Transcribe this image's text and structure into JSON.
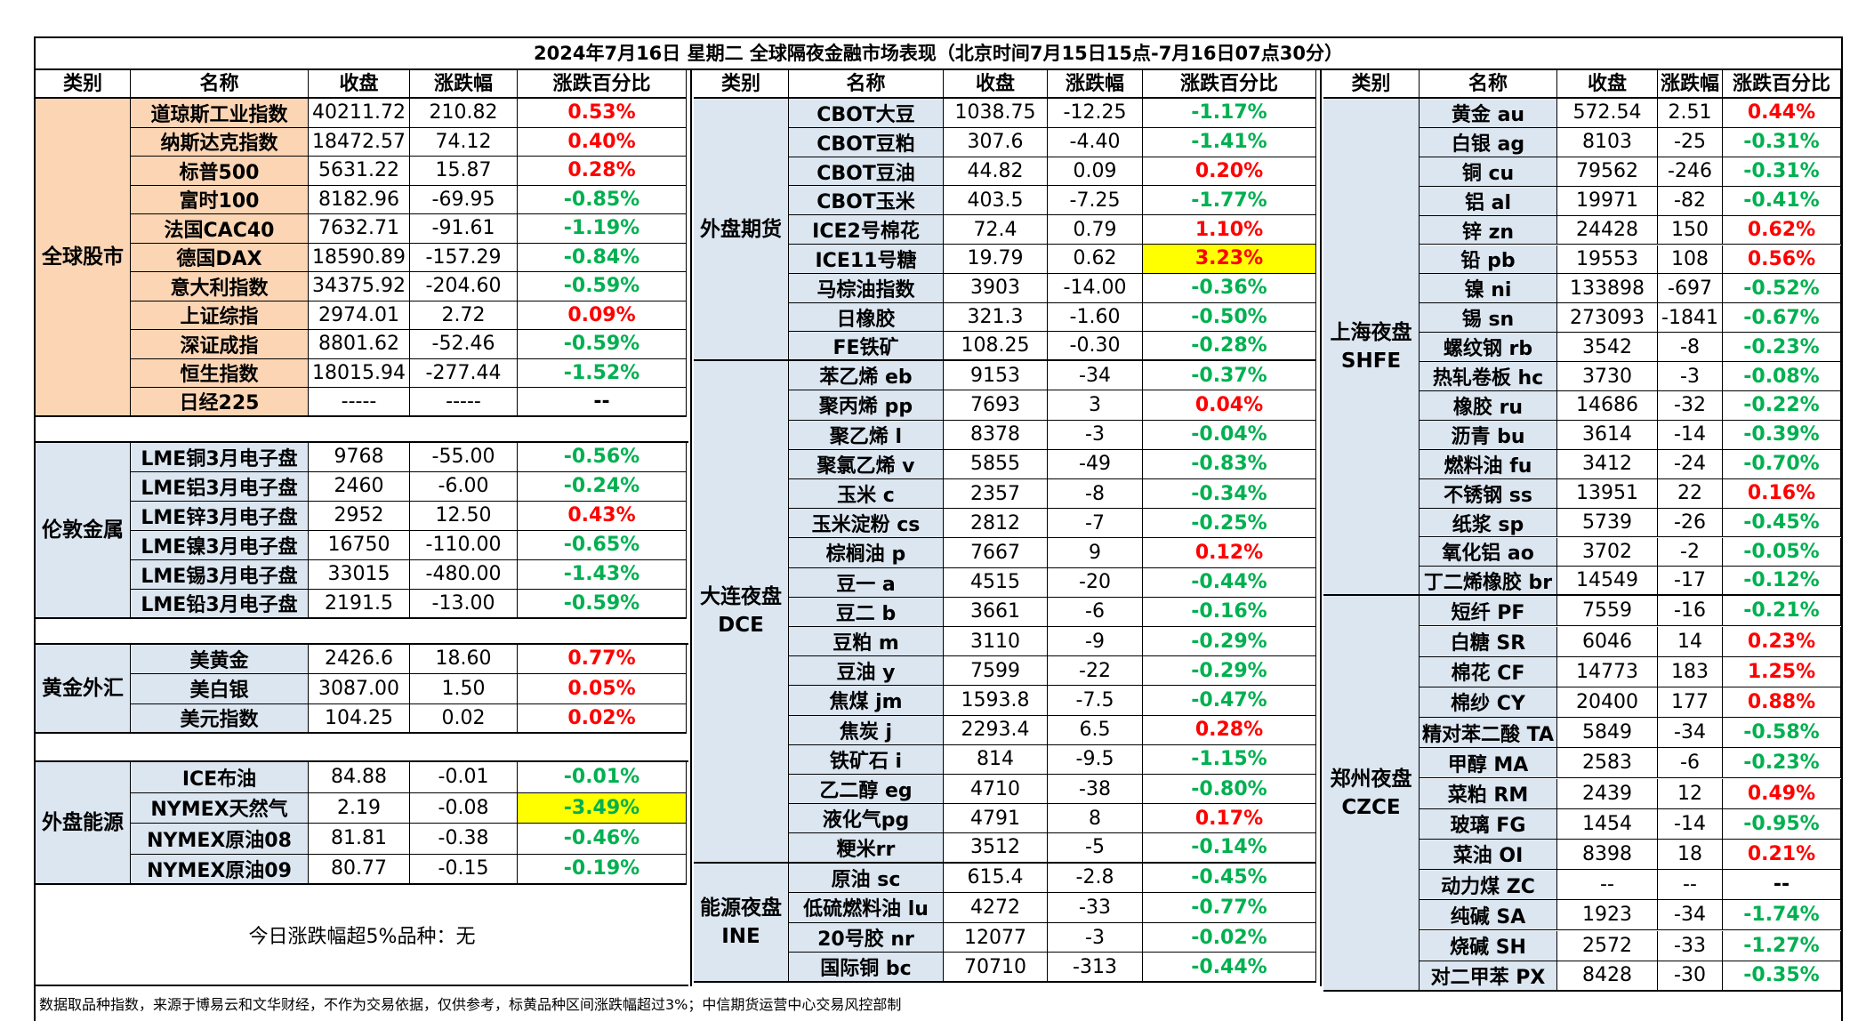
{
  "title": "2024年7月16日 星期二 全球隔夜金融市场表现（北京时间7月15日15点-7月16日07点30分）",
  "headers": [
    "类别",
    "名称",
    "收盘",
    "涨跌幅",
    "涨跌百分比"
  ],
  "colors": {
    "up": "#ff0000",
    "down": "#00b050",
    "highlight": "#ffff00",
    "equity_fill": "#fcd5b4",
    "light_fill": "#dce6f1"
  },
  "panel1": [
    {
      "category": "全球股市",
      "rows": [
        [
          "道琼斯工业指数",
          "40211.72",
          "210.82",
          "0.53%"
        ],
        [
          "纳斯达克指数",
          "18472.57",
          "74.12",
          "0.40%"
        ],
        [
          "标普500",
          "5631.22",
          "15.87",
          "0.28%"
        ],
        [
          "富时100",
          "8182.96",
          "-69.95",
          "-0.85%"
        ],
        [
          "法国CAC40",
          "7632.71",
          "-91.61",
          "-1.19%"
        ],
        [
          "德国DAX",
          "18590.89",
          "-157.29",
          "-0.84%"
        ],
        [
          "意大利指数",
          "34375.92",
          "-204.60",
          "-0.59%"
        ],
        [
          "上证综指",
          "2974.01",
          "2.72",
          "0.09%"
        ],
        [
          "深证成指",
          "8801.62",
          "-52.46",
          "-0.59%"
        ],
        [
          "恒生指数",
          "18015.94",
          "-277.44",
          "-1.52%"
        ],
        [
          "日经225",
          "-----",
          "-----",
          "--"
        ]
      ]
    },
    {
      "category": "伦敦金属",
      "rows": [
        [
          "LME铜3月电子盘",
          "9768",
          "-55.00",
          "-0.56%"
        ],
        [
          "LME铝3月电子盘",
          "2460",
          "-6.00",
          "-0.24%"
        ],
        [
          "LME锌3月电子盘",
          "2952",
          "12.50",
          "0.43%"
        ],
        [
          "LME镍3月电子盘",
          "16750",
          "-110.00",
          "-0.65%"
        ],
        [
          "LME锡3月电子盘",
          "33015",
          "-480.00",
          "-1.43%"
        ],
        [
          "LME铅3月电子盘",
          "2191.5",
          "-13.00",
          "-0.59%"
        ]
      ]
    },
    {
      "category": "黄金外汇",
      "rows": [
        [
          "美黄金",
          "2426.6",
          "18.60",
          "0.77%"
        ],
        [
          "美白银",
          "3087.00",
          "1.50",
          "0.05%"
        ],
        [
          "美元指数",
          "104.25",
          "0.02",
          "0.02%"
        ]
      ]
    },
    {
      "category": "外盘能源",
      "rows": [
        [
          "ICE布油",
          "84.88",
          "-0.01",
          "-0.01%"
        ],
        [
          "NYMEX天然气",
          "2.19",
          "-0.08",
          "-3.49%"
        ],
        [
          "NYMEX原油08",
          "81.81",
          "-0.38",
          "-0.46%"
        ],
        [
          "NYMEX原油09",
          "80.77",
          "-0.15",
          "-0.19%"
        ]
      ]
    }
  ],
  "note": "今日涨跌幅超5%品种：无",
  "panel2": [
    {
      "category": "外盘期货",
      "rows": [
        [
          "CBOT大豆",
          "1038.75",
          "-12.25",
          "-1.17%"
        ],
        [
          "CBOT豆粕",
          "307.6",
          "-4.40",
          "-1.41%"
        ],
        [
          "CBOT豆油",
          "44.82",
          "0.09",
          "0.20%"
        ],
        [
          "CBOT玉米",
          "403.5",
          "-7.25",
          "-1.77%"
        ],
        [
          "ICE2号棉花",
          "72.4",
          "0.79",
          "1.10%"
        ],
        [
          "ICE11号糖",
          "19.79",
          "0.62",
          "3.23%"
        ],
        [
          "马棕油指数",
          "3903",
          "-14.00",
          "-0.36%"
        ],
        [
          "日橡胶",
          "321.3",
          "-1.60",
          "-0.50%"
        ],
        [
          "FE铁矿",
          "108.25",
          "-0.30",
          "-0.28%"
        ]
      ]
    },
    {
      "category": "大连夜盘\nDCE",
      "rows": [
        [
          "苯乙烯 eb",
          "9153",
          "-34",
          "-0.37%"
        ],
        [
          "聚丙烯 pp",
          "7693",
          "3",
          "0.04%"
        ],
        [
          "聚乙烯 l",
          "8378",
          "-3",
          "-0.04%"
        ],
        [
          "聚氯乙烯 v",
          "5855",
          "-49",
          "-0.83%"
        ],
        [
          "玉米 c",
          "2357",
          "-8",
          "-0.34%"
        ],
        [
          "玉米淀粉 cs",
          "2812",
          "-7",
          "-0.25%"
        ],
        [
          "棕榈油 p",
          "7667",
          "9",
          "0.12%"
        ],
        [
          "豆一 a",
          "4515",
          "-20",
          "-0.44%"
        ],
        [
          "豆二 b",
          "3661",
          "-6",
          "-0.16%"
        ],
        [
          "豆粕 m",
          "3110",
          "-9",
          "-0.29%"
        ],
        [
          "豆油 y",
          "7599",
          "-22",
          "-0.29%"
        ],
        [
          "焦煤 jm",
          "1593.8",
          "-7.5",
          "-0.47%"
        ],
        [
          "焦炭 j",
          "2293.4",
          "6.5",
          "0.28%"
        ],
        [
          "铁矿石 i",
          "814",
          "-9.5",
          "-1.15%"
        ],
        [
          "乙二醇 eg",
          "4710",
          "-38",
          "-0.80%"
        ],
        [
          "液化气pg",
          "4791",
          "8",
          "0.17%"
        ],
        [
          "粳米rr",
          "3512",
          "-5",
          "-0.14%"
        ]
      ]
    },
    {
      "category": "能源夜盘\nINE",
      "rows": [
        [
          "原油 sc",
          "615.4",
          "-2.8",
          "-0.45%"
        ],
        [
          "低硫燃料油 lu",
          "4272",
          "-33",
          "-0.77%"
        ],
        [
          "20号胶 nr",
          "12077",
          "-3",
          "-0.02%"
        ],
        [
          "国际铜 bc",
          "70710",
          "-313",
          "-0.44%"
        ]
      ]
    }
  ],
  "panel3": [
    {
      "category": "上海夜盘\nSHFE",
      "rows": [
        [
          "黄金 au",
          "572.54",
          "2.51",
          "0.44%"
        ],
        [
          "白银 ag",
          "8103",
          "-25",
          "-0.31%"
        ],
        [
          "铜 cu",
          "79562",
          "-246",
          "-0.31%"
        ],
        [
          "铝 al",
          "19971",
          "-82",
          "-0.41%"
        ],
        [
          "锌 zn",
          "24428",
          "150",
          "0.62%"
        ],
        [
          "铅 pb",
          "19553",
          "108",
          "0.56%"
        ],
        [
          "镍 ni",
          "133898",
          "-697",
          "-0.52%"
        ],
        [
          "锡 sn",
          "273093",
          "-1841",
          "-0.67%"
        ],
        [
          "螺纹钢 rb",
          "3542",
          "-8",
          "-0.23%"
        ],
        [
          "热轧卷板 hc",
          "3730",
          "-3",
          "-0.08%"
        ],
        [
          "橡胶 ru",
          "14686",
          "-32",
          "-0.22%"
        ],
        [
          "沥青 bu",
          "3614",
          "-14",
          "-0.39%"
        ],
        [
          "燃料油 fu",
          "3412",
          "-24",
          "-0.70%"
        ],
        [
          "不锈钢 ss",
          "13951",
          "22",
          "0.16%"
        ],
        [
          "纸浆 sp",
          "5739",
          "-26",
          "-0.45%"
        ],
        [
          "氧化铝 ao",
          "3702",
          "-2",
          "-0.05%"
        ],
        [
          "丁二烯橡胶 br",
          "14549",
          "-17",
          "-0.12%"
        ]
      ]
    },
    {
      "category": "郑州夜盘\nCZCE",
      "rows": [
        [
          "短纤 PF",
          "7559",
          "-16",
          "-0.21%"
        ],
        [
          "白糖 SR",
          "6046",
          "14",
          "0.23%"
        ],
        [
          "棉花 CF",
          "14773",
          "183",
          "1.25%"
        ],
        [
          "棉纱 CY",
          "20400",
          "177",
          "0.88%"
        ],
        [
          "精对苯二酸 TA",
          "5849",
          "-34",
          "-0.58%"
        ],
        [
          "甲醇 MA",
          "2583",
          "-6",
          "-0.23%"
        ],
        [
          "菜粕 RM",
          "2439",
          "12",
          "0.49%"
        ],
        [
          "玻璃 FG",
          "1454",
          "-14",
          "-0.95%"
        ],
        [
          "菜油 OI",
          "8398",
          "18",
          "0.21%"
        ],
        [
          "动力煤 ZC",
          "--",
          "--",
          "--"
        ],
        [
          "纯碱 SA",
          "1923",
          "-34",
          "-1.74%"
        ],
        [
          "烧碱 SH",
          "2572",
          "-33",
          "-1.27%"
        ],
        [
          "对二甲苯 PX",
          "8428",
          "-30",
          "-0.35%"
        ]
      ]
    }
  ],
  "highlight_cells": [
    "ICE11号糖",
    "NYMEX天然气"
  ],
  "footer": "数据取品种指数，来源于博易云和文华财经，不作为交易依据，仅供参考，标黄品种区间涨跌幅超过3%；中信期货运营中心交易风控部制"
}
